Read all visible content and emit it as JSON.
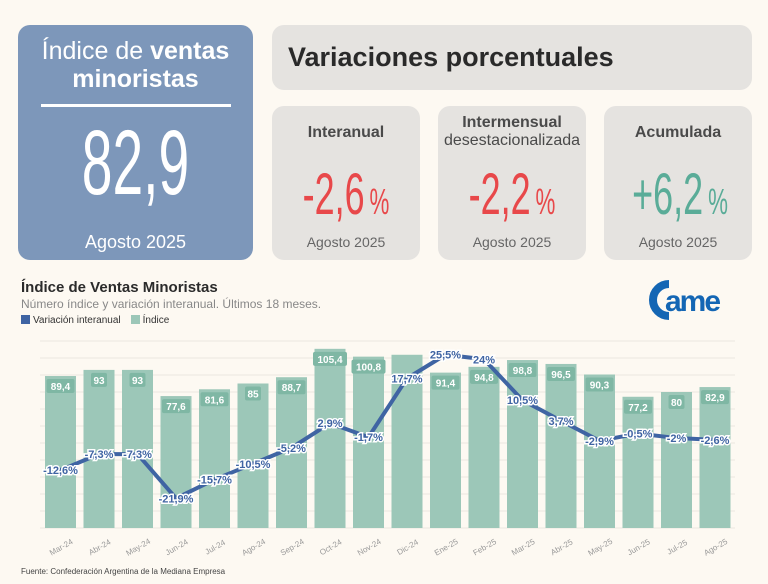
{
  "main_card": {
    "title_light": "Índice de",
    "title_bold_1": "ventas",
    "title_bold_2": "minoristas",
    "value": "82,9",
    "date": "Agosto 2025"
  },
  "variations": {
    "heading": "Variaciones porcentuales",
    "cards": [
      {
        "title": "Interanual",
        "subtitle": "",
        "value": "-2,6",
        "unit": "%",
        "date": "Agosto 2025",
        "color": "#e8484a"
      },
      {
        "title": "Intermensual",
        "subtitle": "desestacionalizada",
        "value": "-2,2",
        "unit": "%",
        "date": "Agosto 2025",
        "color": "#e8484a"
      },
      {
        "title": "Acumulada",
        "subtitle": "",
        "value": "+6,2",
        "unit": "%",
        "date": "Agosto 2025",
        "color": "#5aac98"
      }
    ]
  },
  "logo_text": "came",
  "chart_data": {
    "type": "bar+line",
    "title": "Índice de Ventas Minoristas",
    "subtitle": "Número índice y variación interanual. Últimos 18 meses.",
    "legend": [
      "Variación interanual",
      "Índice"
    ],
    "legend_position": "top-left",
    "colors": {
      "line": "#3f64a3",
      "bars": "#9cc7b8"
    },
    "grid": true,
    "ylim_index": [
      0,
      110
    ],
    "categories": [
      "Mar-24",
      "Abr-24",
      "May-24",
      "Jun-24",
      "Jul-24",
      "Ago-24",
      "Sep-24",
      "Oct-24",
      "Nov-24",
      "Dic-24",
      "Ene-25",
      "Feb-25",
      "Mar-25",
      "Abr-25",
      "May-25",
      "Jun-25",
      "Jul-25",
      "Ago-25"
    ],
    "series": [
      {
        "name": "Índice",
        "type": "bar",
        "values": [
          89.4,
          93,
          93,
          77.6,
          81.6,
          85,
          88.7,
          105.4,
          100.8,
          101.9,
          91.4,
          94.8,
          98.8,
          96.5,
          90.3,
          77.2,
          80,
          82.9
        ],
        "labels": [
          "89,4",
          "93",
          "93",
          "77,6",
          "81,6",
          "85",
          "88,7",
          "105,4",
          "100,8",
          "",
          "91,4",
          "94,8",
          "98,8",
          "96,5",
          "90,3",
          "77,2",
          "80",
          "82,9"
        ]
      },
      {
        "name": "Variación interanual",
        "type": "line",
        "values": [
          -12.6,
          -7.3,
          -7.3,
          -21.9,
          -15.7,
          -10.5,
          -5.2,
          2.9,
          -1.7,
          17.7,
          25.5,
          24,
          10.5,
          3.7,
          -2.9,
          -0.5,
          -2,
          -2.6
        ],
        "labels": [
          "-12,6%",
          "-7,3%",
          "-7,3%",
          "-21,9%",
          "-15,7%",
          "-10,5%",
          "-5,2%",
          "2,9%",
          "-1,7%",
          "17,7%",
          "25,5%",
          "24%",
          "10,5%",
          "3,7%",
          "-2,9%",
          "-0,5%",
          "-2%",
          "-2,6%"
        ]
      }
    ],
    "source": "Fuente: Confederación Argentina de la Mediana Empresa"
  }
}
